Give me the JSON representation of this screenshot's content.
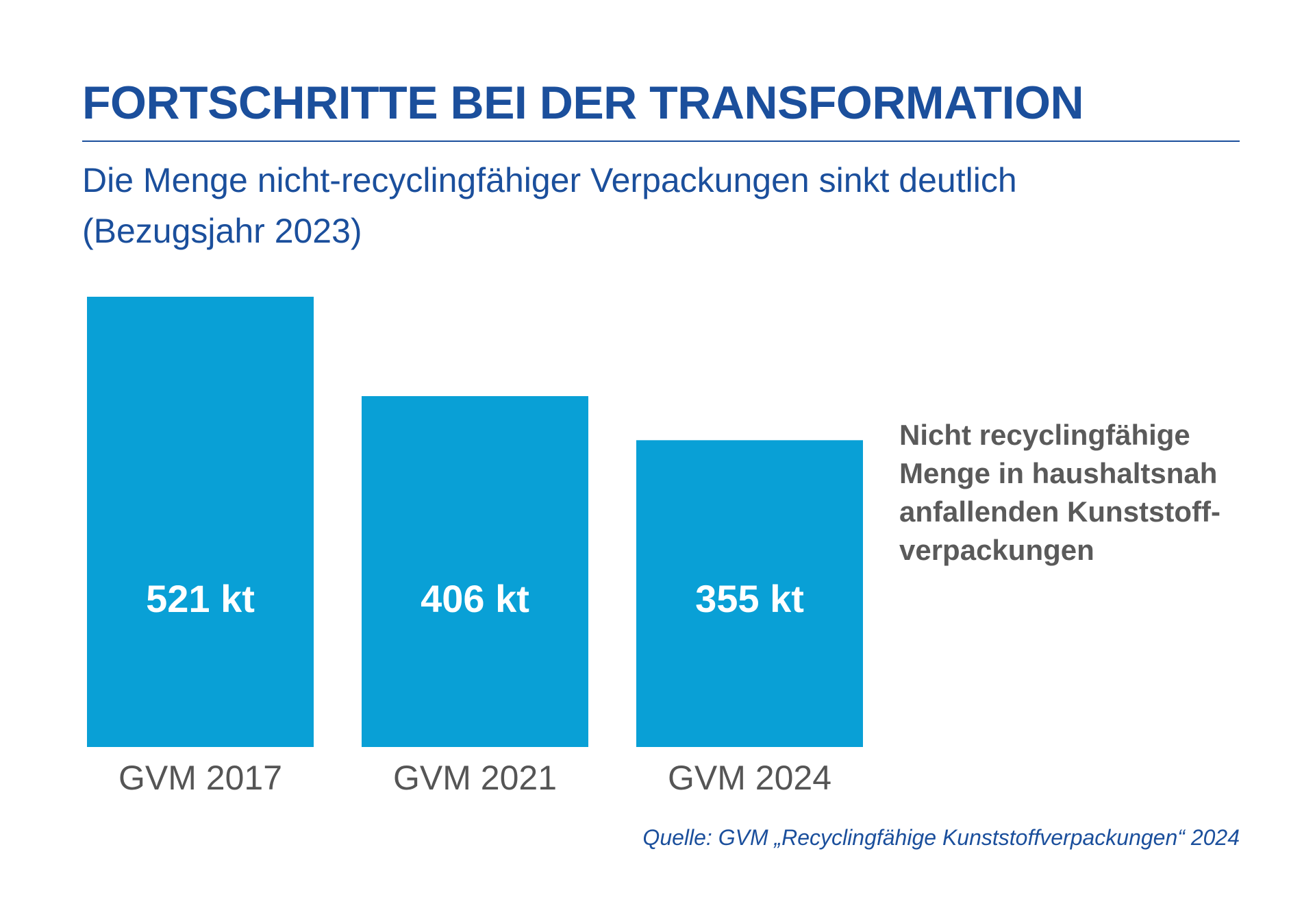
{
  "colors": {
    "title": "#1b4f9c",
    "rule": "#1b4f9c",
    "bar": "#09a0d6",
    "legend_text": "#5a5a5a",
    "category_text": "#555555",
    "source_text": "#1b4f9c"
  },
  "header": {
    "title": "FORTSCHRITTE BEI DER TRANSFORMATION",
    "subtitle_line1": "Die Menge nicht-recyclingfähiger Verpackungen sinkt deutlich",
    "subtitle_line2": "(Bezugsjahr 2023)"
  },
  "legend": {
    "lines": [
      "Nicht recyclingfähige",
      "Menge in haushaltsnah",
      "anfallenden Kunststoff-",
      "verpackungen"
    ]
  },
  "source": "Quelle: GVM „Recyclingfähige Kunststoffverpackungen“ 2024",
  "chart_data": {
    "type": "bar",
    "categories": [
      "GVM 2017",
      "GVM 2021",
      "GVM 2024"
    ],
    "values": [
      521,
      406,
      355
    ],
    "value_labels": [
      "521 kt",
      "406 kt",
      "355 kt"
    ],
    "unit": "kt",
    "ylim": [
      0,
      521
    ],
    "grid": false,
    "axes_visible": false,
    "title": "FORTSCHRITTE BEI DER TRANSFORMATION",
    "xlabel": "",
    "ylabel": ""
  }
}
